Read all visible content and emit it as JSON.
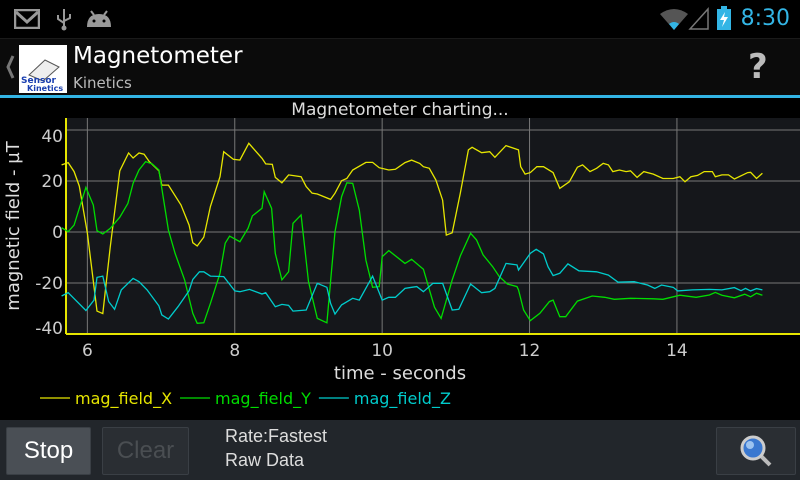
{
  "status_bar": {
    "icons": [
      "gmail-icon",
      "usb-icon",
      "android-icon",
      "wifi-icon",
      "signal-icon",
      "battery-charging-icon"
    ],
    "time": "8:30",
    "accent": "#33b5e5"
  },
  "action_bar": {
    "title": "Magnetometer",
    "subtitle": "Kinetics",
    "logo_text": [
      "Sensor",
      "Kinetics"
    ],
    "help_label": "?"
  },
  "chart_data": {
    "type": "line",
    "title": "Magnetometer charting...",
    "xlabel": "time - seconds",
    "ylabel": "magnetic field - µT",
    "xlim": [
      5.71,
      15.67
    ],
    "ylim": [
      -40,
      40
    ],
    "xticks": [
      6,
      8,
      10,
      12,
      14
    ],
    "yticks": [
      40,
      20,
      0,
      -20,
      -40
    ],
    "ytick_labels": [
      "40",
      "20",
      "0",
      "-20",
      "-40"
    ],
    "grid": true,
    "legend": "bottom",
    "series": [
      {
        "name": "mag_field_X",
        "color": "#e6e600",
        "points": [
          [
            5.65,
            26.3
          ],
          [
            5.74,
            27.2
          ],
          [
            5.82,
            23.7
          ],
          [
            5.89,
            18
          ],
          [
            6.0,
            -0.5
          ],
          [
            6.13,
            -31
          ],
          [
            6.21,
            -32
          ],
          [
            6.31,
            -6
          ],
          [
            6.44,
            24
          ],
          [
            6.56,
            31
          ],
          [
            6.62,
            29
          ],
          [
            6.7,
            31
          ],
          [
            6.77,
            30.5
          ],
          [
            6.84,
            27.6
          ],
          [
            6.97,
            24
          ],
          [
            7.01,
            18.4
          ],
          [
            7.1,
            18.4
          ],
          [
            7.27,
            10.6
          ],
          [
            7.38,
            2.7
          ],
          [
            7.43,
            -4.2
          ],
          [
            7.49,
            -5.5
          ],
          [
            7.58,
            -2
          ],
          [
            7.67,
            10
          ],
          [
            7.8,
            21.7
          ],
          [
            7.85,
            31.5
          ],
          [
            7.98,
            28.5
          ],
          [
            8.07,
            28.2
          ],
          [
            8.19,
            34.8
          ],
          [
            8.37,
            28.9
          ],
          [
            8.42,
            26.7
          ],
          [
            8.51,
            26.5
          ],
          [
            8.55,
            21.4
          ],
          [
            8.64,
            19.3
          ],
          [
            8.73,
            22.4
          ],
          [
            8.9,
            21.7
          ],
          [
            8.97,
            17.8
          ],
          [
            9.05,
            15.2
          ],
          [
            9.12,
            14.9
          ],
          [
            9.3,
            12.8
          ],
          [
            9.36,
            15.2
          ],
          [
            9.45,
            20.1
          ],
          [
            9.52,
            21
          ],
          [
            9.6,
            24.3
          ],
          [
            9.78,
            27.3
          ],
          [
            9.87,
            27.3
          ],
          [
            9.96,
            25.2
          ],
          [
            10.09,
            24.3
          ],
          [
            10.18,
            24.6
          ],
          [
            10.31,
            27.2
          ],
          [
            10.4,
            28.2
          ],
          [
            10.51,
            26.9
          ],
          [
            10.56,
            25.6
          ],
          [
            10.64,
            25
          ],
          [
            10.73,
            20.4
          ],
          [
            10.82,
            12.5
          ],
          [
            10.87,
            -1.2
          ],
          [
            10.95,
            -0.3
          ],
          [
            11.06,
            15.2
          ],
          [
            11.17,
            32.2
          ],
          [
            11.22,
            33.2
          ],
          [
            11.35,
            31.1
          ],
          [
            11.46,
            31.5
          ],
          [
            11.53,
            29.3
          ],
          [
            11.68,
            33.9
          ],
          [
            11.85,
            32.2
          ],
          [
            11.88,
            25.6
          ],
          [
            11.94,
            22.7
          ],
          [
            12.01,
            23.3
          ],
          [
            12.1,
            25.6
          ],
          [
            12.19,
            25.6
          ],
          [
            12.32,
            23.3
          ],
          [
            12.41,
            17.1
          ],
          [
            12.54,
            19.7
          ],
          [
            12.65,
            25.4
          ],
          [
            12.72,
            26.3
          ],
          [
            12.82,
            23.7
          ],
          [
            12.91,
            25
          ],
          [
            13.0,
            26.9
          ],
          [
            13.07,
            26.3
          ],
          [
            13.13,
            23.7
          ],
          [
            13.22,
            24.3
          ],
          [
            13.31,
            23.7
          ],
          [
            13.37,
            24
          ],
          [
            13.46,
            21.4
          ],
          [
            13.55,
            23.7
          ],
          [
            13.68,
            22.7
          ],
          [
            13.81,
            21
          ],
          [
            13.95,
            21
          ],
          [
            14.04,
            21.7
          ],
          [
            14.11,
            19.7
          ],
          [
            14.19,
            21.7
          ],
          [
            14.28,
            22.2
          ],
          [
            14.37,
            23.7
          ],
          [
            14.48,
            23.7
          ],
          [
            14.52,
            21.7
          ],
          [
            14.61,
            22.4
          ],
          [
            14.7,
            22.4
          ],
          [
            14.78,
            20.8
          ],
          [
            14.96,
            23.3
          ],
          [
            15.0,
            23.4
          ],
          [
            15.08,
            21
          ],
          [
            15.16,
            23
          ]
        ]
      },
      {
        "name": "mag_field_Y",
        "color": "#00dd00",
        "points": [
          [
            5.65,
            1.7
          ],
          [
            5.74,
            0.1
          ],
          [
            5.82,
            2.7
          ],
          [
            5.89,
            9.3
          ],
          [
            5.98,
            17.5
          ],
          [
            6.08,
            10.6
          ],
          [
            6.13,
            0.5
          ],
          [
            6.21,
            -0.8
          ],
          [
            6.31,
            1.4
          ],
          [
            6.44,
            5.8
          ],
          [
            6.55,
            11.2
          ],
          [
            6.62,
            19.1
          ],
          [
            6.7,
            24.3
          ],
          [
            6.79,
            27.6
          ],
          [
            6.88,
            26.7
          ],
          [
            6.97,
            24.3
          ],
          [
            7.1,
            0.8
          ],
          [
            7.19,
            -8.4
          ],
          [
            7.32,
            -18.8
          ],
          [
            7.43,
            -31.9
          ],
          [
            7.49,
            -35.8
          ],
          [
            7.58,
            -35.6
          ],
          [
            7.67,
            -28
          ],
          [
            7.8,
            -16.2
          ],
          [
            7.87,
            -4.4
          ],
          [
            7.93,
            -1.6
          ],
          [
            8.07,
            -3.8
          ],
          [
            8.18,
            1.4
          ],
          [
            8.24,
            6.3
          ],
          [
            8.37,
            9.3
          ],
          [
            8.4,
            15.8
          ],
          [
            8.5,
            9.3
          ],
          [
            8.55,
            -8.4
          ],
          [
            8.64,
            -18.8
          ],
          [
            8.73,
            -15.6
          ],
          [
            8.79,
            3.4
          ],
          [
            8.9,
            6.7
          ],
          [
            9.0,
            -19.5
          ],
          [
            9.12,
            -33.9
          ],
          [
            9.25,
            -35.6
          ],
          [
            9.36,
            0.1
          ],
          [
            9.45,
            13.9
          ],
          [
            9.52,
            19.3
          ],
          [
            9.6,
            19.1
          ],
          [
            9.69,
            8.6
          ],
          [
            9.78,
            -11
          ],
          [
            9.87,
            -21.7
          ],
          [
            9.96,
            -21.4
          ],
          [
            10.0,
            -9.7
          ],
          [
            10.09,
            -7.3
          ],
          [
            10.31,
            -12.3
          ],
          [
            10.4,
            -10.7
          ],
          [
            10.56,
            -14.6
          ],
          [
            10.71,
            -29.5
          ],
          [
            10.8,
            -33.9
          ],
          [
            10.95,
            -18.8
          ],
          [
            11.06,
            -9.4
          ],
          [
            11.2,
            -0.5
          ],
          [
            11.28,
            -3.1
          ],
          [
            11.37,
            -9
          ],
          [
            11.5,
            -13.6
          ],
          [
            11.59,
            -17.5
          ],
          [
            11.7,
            -20.4
          ],
          [
            11.83,
            -21.4
          ],
          [
            11.85,
            -22.7
          ],
          [
            11.92,
            -30.6
          ],
          [
            12.01,
            -34.8
          ],
          [
            12.14,
            -31.9
          ],
          [
            12.27,
            -27.3
          ],
          [
            12.32,
            -26.7
          ],
          [
            12.41,
            -33.2
          ],
          [
            12.49,
            -33.2
          ],
          [
            12.65,
            -27.1
          ],
          [
            12.85,
            -25.1
          ],
          [
            13.02,
            -25.6
          ],
          [
            13.15,
            -26.4
          ],
          [
            13.37,
            -26
          ],
          [
            13.68,
            -26.2
          ],
          [
            13.81,
            -26.4
          ],
          [
            14.04,
            -24.8
          ],
          [
            14.26,
            -25.6
          ],
          [
            14.44,
            -24.7
          ],
          [
            14.52,
            -23.7
          ],
          [
            14.61,
            -24.8
          ],
          [
            14.78,
            -25.8
          ],
          [
            14.92,
            -24.4
          ],
          [
            15.0,
            -25.4
          ],
          [
            15.08,
            -24
          ],
          [
            15.16,
            -24.8
          ]
        ]
      },
      {
        "name": "mag_field_Z",
        "color": "#00cccc",
        "points": [
          [
            5.65,
            -25.1
          ],
          [
            5.74,
            -23.8
          ],
          [
            5.98,
            -30.8
          ],
          [
            6.09,
            -26.7
          ],
          [
            6.13,
            -17.8
          ],
          [
            6.21,
            -17.3
          ],
          [
            6.29,
            -27.3
          ],
          [
            6.37,
            -30.3
          ],
          [
            6.46,
            -22.7
          ],
          [
            6.62,
            -18.2
          ],
          [
            6.7,
            -19.5
          ],
          [
            6.81,
            -22.7
          ],
          [
            6.97,
            -29
          ],
          [
            7.01,
            -32.5
          ],
          [
            7.1,
            -34.1
          ],
          [
            7.23,
            -29.3
          ],
          [
            7.38,
            -23
          ],
          [
            7.43,
            -18.6
          ],
          [
            7.52,
            -15.6
          ],
          [
            7.58,
            -15.6
          ],
          [
            7.67,
            -17.3
          ],
          [
            7.85,
            -17.5
          ],
          [
            8.0,
            -23.1
          ],
          [
            8.07,
            -23.4
          ],
          [
            8.2,
            -22.5
          ],
          [
            8.37,
            -24.3
          ],
          [
            8.42,
            -23.8
          ],
          [
            8.55,
            -29.3
          ],
          [
            8.64,
            -28.4
          ],
          [
            8.73,
            -28.8
          ],
          [
            8.79,
            -31
          ],
          [
            8.97,
            -30.6
          ],
          [
            9.12,
            -20.1
          ],
          [
            9.25,
            -21.7
          ],
          [
            9.3,
            -28
          ],
          [
            9.36,
            -32.2
          ],
          [
            9.45,
            -28.6
          ],
          [
            9.6,
            -26
          ],
          [
            9.69,
            -26.7
          ],
          [
            9.87,
            -17.3
          ],
          [
            10.0,
            -26.7
          ],
          [
            10.09,
            -25.6
          ],
          [
            10.18,
            -25.6
          ],
          [
            10.31,
            -22.1
          ],
          [
            10.4,
            -21.7
          ],
          [
            10.47,
            -21.4
          ],
          [
            10.56,
            -23.4
          ],
          [
            10.69,
            -20.1
          ],
          [
            10.82,
            -20.1
          ],
          [
            10.95,
            -30.6
          ],
          [
            11.04,
            -30.3
          ],
          [
            11.2,
            -20.4
          ],
          [
            11.35,
            -23.8
          ],
          [
            11.46,
            -23.4
          ],
          [
            11.53,
            -22.1
          ],
          [
            11.68,
            -12.3
          ],
          [
            11.83,
            -12.9
          ],
          [
            11.85,
            -14.9
          ],
          [
            12.01,
            -8.4
          ],
          [
            12.09,
            -6.8
          ],
          [
            12.19,
            -8.6
          ],
          [
            12.25,
            -13.6
          ],
          [
            12.32,
            -17.1
          ],
          [
            12.41,
            -16.2
          ],
          [
            12.52,
            -12.5
          ],
          [
            12.67,
            -15.2
          ],
          [
            12.91,
            -15.6
          ],
          [
            13.07,
            -16.9
          ],
          [
            13.2,
            -19.7
          ],
          [
            13.42,
            -19.5
          ],
          [
            13.6,
            -20.8
          ],
          [
            13.7,
            -22.1
          ],
          [
            13.79,
            -20.8
          ],
          [
            13.95,
            -21.7
          ],
          [
            14.01,
            -23.1
          ],
          [
            14.21,
            -22.7
          ],
          [
            14.44,
            -22.5
          ],
          [
            14.61,
            -22.7
          ],
          [
            14.78,
            -21.8
          ],
          [
            14.87,
            -23
          ],
          [
            14.93,
            -22.1
          ],
          [
            15.0,
            -23.1
          ],
          [
            15.08,
            -22.2
          ],
          [
            15.16,
            -22.7
          ]
        ]
      }
    ]
  },
  "bottom_bar": {
    "stop_label": "Stop",
    "clear_label": "Clear",
    "rate": "Rate:Fastest",
    "mode": "Raw Data",
    "zoom_icon": "magnifier-icon"
  }
}
